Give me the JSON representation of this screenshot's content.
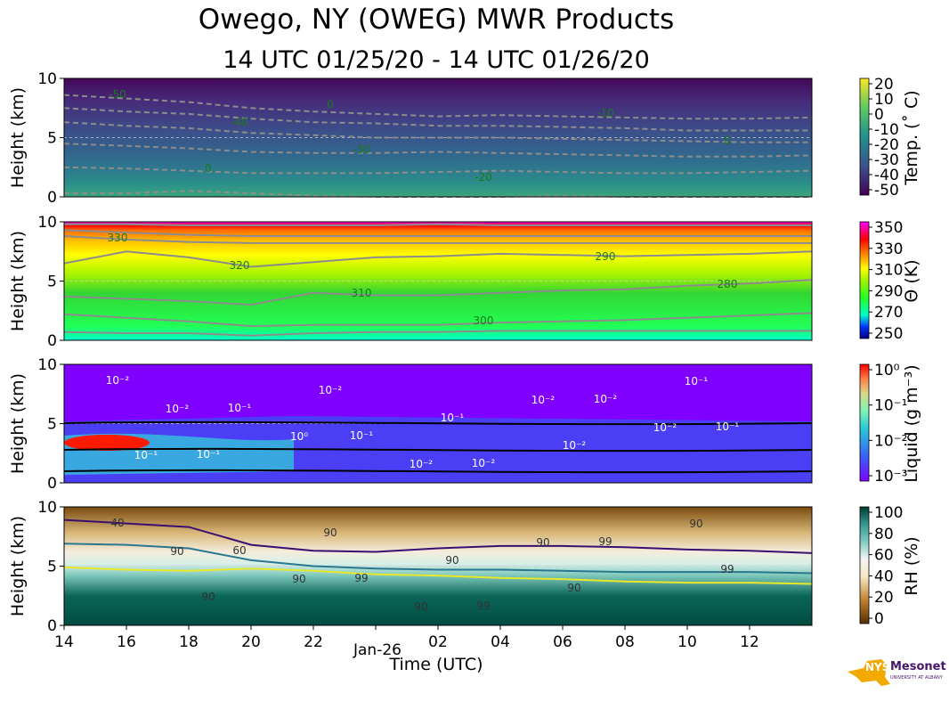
{
  "title": "Owego, NY (OWEG) MWR Products",
  "subtitle": "14 UTC 01/25/20 - 14 UTC 01/26/20",
  "logo": {
    "text1": "NYS",
    "text2": "Mesonet",
    "text3": "UNIVERSITY AT ALBANY"
  },
  "chart_data": [
    {
      "type": "heatmap",
      "name": "temperature",
      "ylabel": "Height (km)",
      "ylim": [
        0,
        10
      ],
      "yticks": [
        "0",
        "5",
        "10"
      ],
      "colorbar_label": "Temp. (˚ C)",
      "colorbar_ticks": [
        "20",
        "10",
        "0",
        "-10",
        "-20",
        "-30",
        "-40",
        "-50"
      ],
      "contours": [
        {
          "level": "-50",
          "heights": [
            8.6,
            8.3,
            8.0,
            7.5,
            7.2,
            7.0,
            6.8,
            6.9,
            6.8,
            6.7,
            6.6,
            6.6,
            6.7
          ]
        },
        {
          "level": "-40",
          "heights": [
            7.5,
            7.2,
            7.0,
            6.6,
            6.3,
            6.2,
            6.0,
            6.0,
            5.9,
            5.8,
            5.6,
            5.6,
            5.6
          ]
        },
        {
          "level": "-30",
          "heights": [
            6.3,
            6.0,
            5.8,
            5.4,
            5.2,
            5.0,
            5.0,
            5.0,
            4.9,
            4.8,
            4.7,
            4.6,
            4.6
          ]
        },
        {
          "level": "-20",
          "heights": [
            4.5,
            4.3,
            4.1,
            3.8,
            3.7,
            3.7,
            3.8,
            3.7,
            3.6,
            3.5,
            3.4,
            3.4,
            3.5
          ]
        },
        {
          "level": "-10",
          "heights": [
            2.5,
            2.4,
            2.2,
            2.0,
            2.0,
            2.0,
            2.1,
            2.2,
            2.1,
            2.0,
            2.0,
            2.1,
            2.2
          ]
        },
        {
          "level": "0",
          "heights": [
            0.3,
            0.3,
            0.5,
            0.3,
            0.1,
            0.0,
            0.0,
            0.0,
            0.1,
            0.0,
            0.0,
            0.0,
            0.0
          ]
        }
      ],
      "contour_labels": [
        "-50",
        "-40",
        "-30",
        "-20",
        "-10",
        "0",
        "0",
        "0"
      ]
    },
    {
      "type": "heatmap",
      "name": "potential_temperature",
      "ylabel": "Height (km)",
      "ylim": [
        0,
        10
      ],
      "yticks": [
        "0",
        "5",
        "10"
      ],
      "colorbar_label": "Θ (K)",
      "colorbar_ticks": [
        "350",
        "330",
        "310",
        "290",
        "270",
        "250"
      ],
      "contours": [
        {
          "level": "330",
          "heights": [
            9.8,
            9.8,
            9.7,
            9.7,
            9.7,
            9.7,
            9.8,
            9.7,
            9.7,
            9.7,
            9.7,
            9.7,
            9.7
          ]
        },
        {
          "level": "320",
          "heights": [
            9.3,
            9.1,
            8.9,
            8.8,
            8.8,
            8.8,
            8.8,
            8.8,
            8.8,
            8.8,
            8.8,
            8.8,
            8.8
          ]
        },
        {
          "level": "310",
          "heights": [
            8.8,
            8.5,
            8.3,
            8.2,
            8.2,
            8.2,
            8.2,
            8.2,
            8.2,
            8.2,
            8.2,
            8.2,
            8.2
          ]
        },
        {
          "level": "300",
          "heights": [
            6.5,
            7.5,
            7.0,
            6.2,
            6.6,
            7.0,
            7.1,
            7.3,
            7.2,
            7.1,
            7.2,
            7.3,
            7.5
          ]
        },
        {
          "level": "290",
          "heights": [
            3.7,
            3.5,
            3.3,
            3.0,
            4.0,
            3.8,
            3.8,
            4.0,
            4.2,
            4.3,
            4.6,
            4.8,
            5.1
          ]
        },
        {
          "level": "280",
          "heights": [
            2.2,
            1.9,
            1.6,
            1.2,
            1.3,
            1.3,
            1.3,
            1.5,
            1.6,
            1.7,
            1.9,
            2.1,
            2.3
          ]
        },
        {
          "level": "270",
          "heights": [
            0.7,
            0.6,
            0.6,
            0.4,
            0.6,
            0.7,
            0.7,
            0.8,
            0.8,
            0.8,
            0.8,
            0.8,
            0.8
          ]
        }
      ],
      "contour_labels": [
        "330",
        "320",
        "310",
        "300",
        "290",
        "280"
      ]
    },
    {
      "type": "heatmap",
      "name": "liquid_water",
      "ylabel": "Height (km)",
      "ylim": [
        0,
        10
      ],
      "yticks": [
        "0",
        "5",
        "10"
      ],
      "colorbar_label": "Liquid (g m⁻³)",
      "colorbar_ticks": [
        "10⁰",
        "10⁻¹",
        "10⁻²",
        "10⁻³"
      ],
      "contour_labels": [
        "10⁻²",
        "10⁻¹",
        "10⁻¹",
        "10⁻²",
        "10⁻²",
        "10⁻¹",
        "10⁻¹",
        "10⁻²",
        "10⁻¹",
        "10⁻²",
        "10⁻¹",
        "10⁻²",
        "10⁰",
        "10⁻²",
        "10⁻²",
        "10⁻²",
        "10⁻¹"
      ]
    },
    {
      "type": "heatmap",
      "name": "relative_humidity",
      "ylabel": "Height (km)",
      "ylim": [
        0,
        10
      ],
      "yticks": [
        "0",
        "5",
        "10"
      ],
      "xlabel": "Time (UTC)",
      "xticks": [
        "14",
        "16",
        "18",
        "20",
        "22",
        "Jan-26",
        "02",
        "04",
        "06",
        "08",
        "10",
        "12"
      ],
      "colorbar_label": "RH (%)",
      "colorbar_ticks": [
        "100",
        "80",
        "60",
        "40",
        "20",
        "0"
      ],
      "contours": [
        {
          "level": "40",
          "heights": [
            8.9,
            8.6,
            8.3,
            6.8,
            6.3,
            6.2,
            6.5,
            6.7,
            6.7,
            6.6,
            6.4,
            6.3,
            6.1
          ]
        },
        {
          "level": "60",
          "heights": [
            6.9,
            6.8,
            6.5,
            5.5,
            5.0,
            4.8,
            4.7,
            4.7,
            4.6,
            4.5,
            4.5,
            4.5,
            4.4
          ]
        },
        {
          "level": "90",
          "heights": [
            4.9,
            4.7,
            4.6,
            4.8,
            4.6,
            4.3,
            4.2,
            4.0,
            3.9,
            3.7,
            3.6,
            3.6,
            3.5
          ]
        }
      ],
      "contour_labels": [
        "40",
        "60",
        "99",
        "99",
        "99",
        "99",
        "90",
        "90",
        "90",
        "90",
        "90",
        "90",
        "90",
        "90",
        "90"
      ]
    }
  ]
}
